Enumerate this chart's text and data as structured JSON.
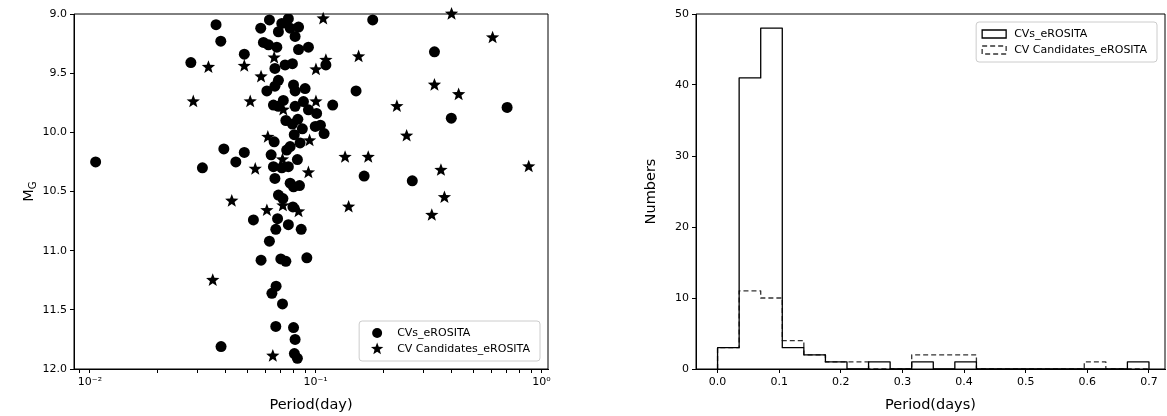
{
  "chart_data": [
    {
      "type": "scatter",
      "xlabel": "Period(day)",
      "ylabel": "M$_{G}$",
      "log": "x",
      "legend": "bottom right",
      "xlim": [
        0.0085,
        1.07
      ],
      "xticks": [
        {
          "value": 0.009,
          "label": null
        },
        {
          "value": 0.01,
          "label": "10⁻²"
        },
        {
          "value": 0.02,
          "label": null
        },
        {
          "value": 0.03,
          "label": null
        },
        {
          "value": 0.04,
          "label": null
        },
        {
          "value": 0.05,
          "label": null
        },
        {
          "value": 0.06,
          "label": null
        },
        {
          "value": 0.07,
          "label": null
        },
        {
          "value": 0.08,
          "label": null
        },
        {
          "value": 0.09,
          "label": null
        },
        {
          "value": 0.1,
          "label": "10⁻¹"
        },
        {
          "value": 0.2,
          "label": null
        },
        {
          "value": 0.3,
          "label": null
        },
        {
          "value": 0.4,
          "label": null
        },
        {
          "value": 0.5,
          "label": null
        },
        {
          "value": 0.6,
          "label": null
        },
        {
          "value": 0.7,
          "label": null
        },
        {
          "value": 0.8,
          "label": null
        },
        {
          "value": 0.9,
          "label": null
        },
        {
          "value": 1,
          "label": "10⁰"
        }
      ],
      "ylim": [
        12,
        9
      ],
      "yticks": [
        {
          "value": 9,
          "label": "9.0"
        },
        {
          "value": 9.5,
          "label": "9.5"
        },
        {
          "value": 10,
          "label": "10.0"
        },
        {
          "value": 10.5,
          "label": "10.5"
        },
        {
          "value": 11,
          "label": "11.0"
        },
        {
          "value": 11.5,
          "label": "11.5"
        },
        {
          "value": 12,
          "label": "12.0"
        }
      ],
      "series": [
        {
          "name": "CVs_eROSITA",
          "color": "#000000",
          "marker": "circle",
          "x": [
            0.0106,
            0.028,
            0.0315,
            0.0362,
            0.038,
            0.0392,
            0.0443,
            0.0483,
            0.0483,
            0.0571,
            0.0587,
            0.0618,
            0.0624,
            0.0608,
            0.066,
            0.0673,
            0.0684,
            0.066,
            0.065,
            0.0684,
            0.0719,
            0.0732,
            0.0789,
            0.0684,
            0.0708,
            0.0757,
            0.0771,
            0.084,
            0.0811,
            0.084,
            0.0929,
            0.0798,
            0.0811,
            0.0898,
            0.0811,
            0.0883,
            0.0929,
            0.101,
            0.119,
            0.0738,
            0.0834,
            0.0789,
            0.0873,
            0.0996,
            0.105,
            0.109,
            0.0804,
            0.0655,
            0.0771,
            0.0853,
            0.0744,
            0.0635,
            0.083,
            0.065,
            0.0757,
            0.0708,
            0.066,
            0.0771,
            0.0848,
            0.0798,
            0.0684,
            0.0716,
            0.164,
            0.151,
            0.179,
            0.111,
            0.0793,
            0.053,
            0.0678,
            0.0757,
            0.0666,
            0.0863,
            0.0624,
            0.0573,
            0.0701,
            0.0738,
            0.0914,
            0.0668,
            0.064,
            0.0713,
            0.0666,
            0.0798,
            0.0811,
            0.0381,
            0.0805,
            0.083,
            0.336,
            0.705,
            0.399,
            0.268
          ],
          "values": [
            10.25,
            9.41,
            10.3,
            9.09,
            9.23,
            10.14,
            10.25,
            10.17,
            9.34,
            9.12,
            9.24,
            9.26,
            9.05,
            9.65,
            9.46,
            9.28,
            9.56,
            9.61,
            9.77,
            9.78,
            9.73,
            9.43,
            9.42,
            9.15,
            9.08,
            9.04,
            9.12,
            9.11,
            9.19,
            9.3,
            9.28,
            9.6,
            9.65,
            9.63,
            9.78,
            9.74,
            9.81,
            9.84,
            9.77,
            9.9,
            9.89,
            9.93,
            9.97,
            9.95,
            9.94,
            10.01,
            10.02,
            10.08,
            10.12,
            10.09,
            10.15,
            10.19,
            10.23,
            10.29,
            10.29,
            10.3,
            10.39,
            10.43,
            10.45,
            10.46,
            10.53,
            10.56,
            10.37,
            9.65,
            9.05,
            9.43,
            10.63,
            10.74,
            10.73,
            10.78,
            10.82,
            10.82,
            10.92,
            11.08,
            11.07,
            11.09,
            11.06,
            11.3,
            11.36,
            11.45,
            11.64,
            11.65,
            11.75,
            11.81,
            11.87,
            11.91,
            9.32,
            9.79,
            9.88,
            10.41
          ]
        },
        {
          "name": "CV Candidates_eROSITA",
          "color": "#000000",
          "marker": "star",
          "x": [
            0.0335,
            0.0287,
            0.0483,
            0.0513,
            0.0573,
            0.0655,
            0.108,
            0.111,
            0.1003,
            0.1003,
            0.0719,
            0.155,
            0.0614,
            0.094,
            0.0713,
            0.135,
            0.171,
            0.054,
            0.0929,
            0.0425,
            0.0608,
            0.0716,
            0.084,
            0.14,
            0.035,
            0.0646,
            0.4,
            0.608,
            0.336,
            0.43,
            0.229,
            0.253,
            0.879,
            0.359,
            0.372,
            0.327
          ],
          "values": [
            9.45,
            9.74,
            9.44,
            9.74,
            9.53,
            9.37,
            9.04,
            9.39,
            9.47,
            9.74,
            9.81,
            9.36,
            10.04,
            10.07,
            10.23,
            10.21,
            10.21,
            10.31,
            10.34,
            10.58,
            10.66,
            10.62,
            10.67,
            10.63,
            11.25,
            11.89,
            9.0,
            9.2,
            9.6,
            9.68,
            9.78,
            10.03,
            10.29,
            10.32,
            10.55,
            10.7
          ]
        }
      ]
    },
    {
      "type": "histogram",
      "xlabel": "Period(days)",
      "ylabel": "Numbers",
      "legend": "top right",
      "bins": [
        0,
        0.035,
        0.07,
        0.105,
        0.14,
        0.175,
        0.21,
        0.245,
        0.28,
        0.315,
        0.35,
        0.385,
        0.42,
        0.455,
        0.49,
        0.525,
        0.56,
        0.595,
        0.63,
        0.665,
        0.7
      ],
      "xlim": [
        -0.035,
        0.726
      ],
      "xticks": [
        {
          "value": 0,
          "label": "0.0"
        },
        0.1,
        0.2,
        0.3,
        0.4,
        0.5,
        0.6,
        0.7
      ],
      "ylim": [
        0,
        50
      ],
      "yticks": [
        0,
        10,
        20,
        30,
        40,
        50
      ],
      "series": [
        {
          "name": "CVs_eROSITA",
          "color": "#000000",
          "line_style": "solid",
          "values": [
            3,
            41,
            48,
            3,
            2,
            1,
            0,
            1,
            0,
            1,
            0,
            1,
            0,
            0,
            0,
            0,
            0,
            0,
            0,
            1
          ]
        },
        {
          "name": "CV Candidates_eROSITA",
          "color": "#333333",
          "line_style": "dashed",
          "values": [
            3,
            11,
            10,
            4,
            2,
            1,
            1,
            0,
            0,
            2,
            2,
            2,
            0,
            0,
            0,
            0,
            0,
            1,
            0,
            0
          ]
        }
      ]
    }
  ]
}
